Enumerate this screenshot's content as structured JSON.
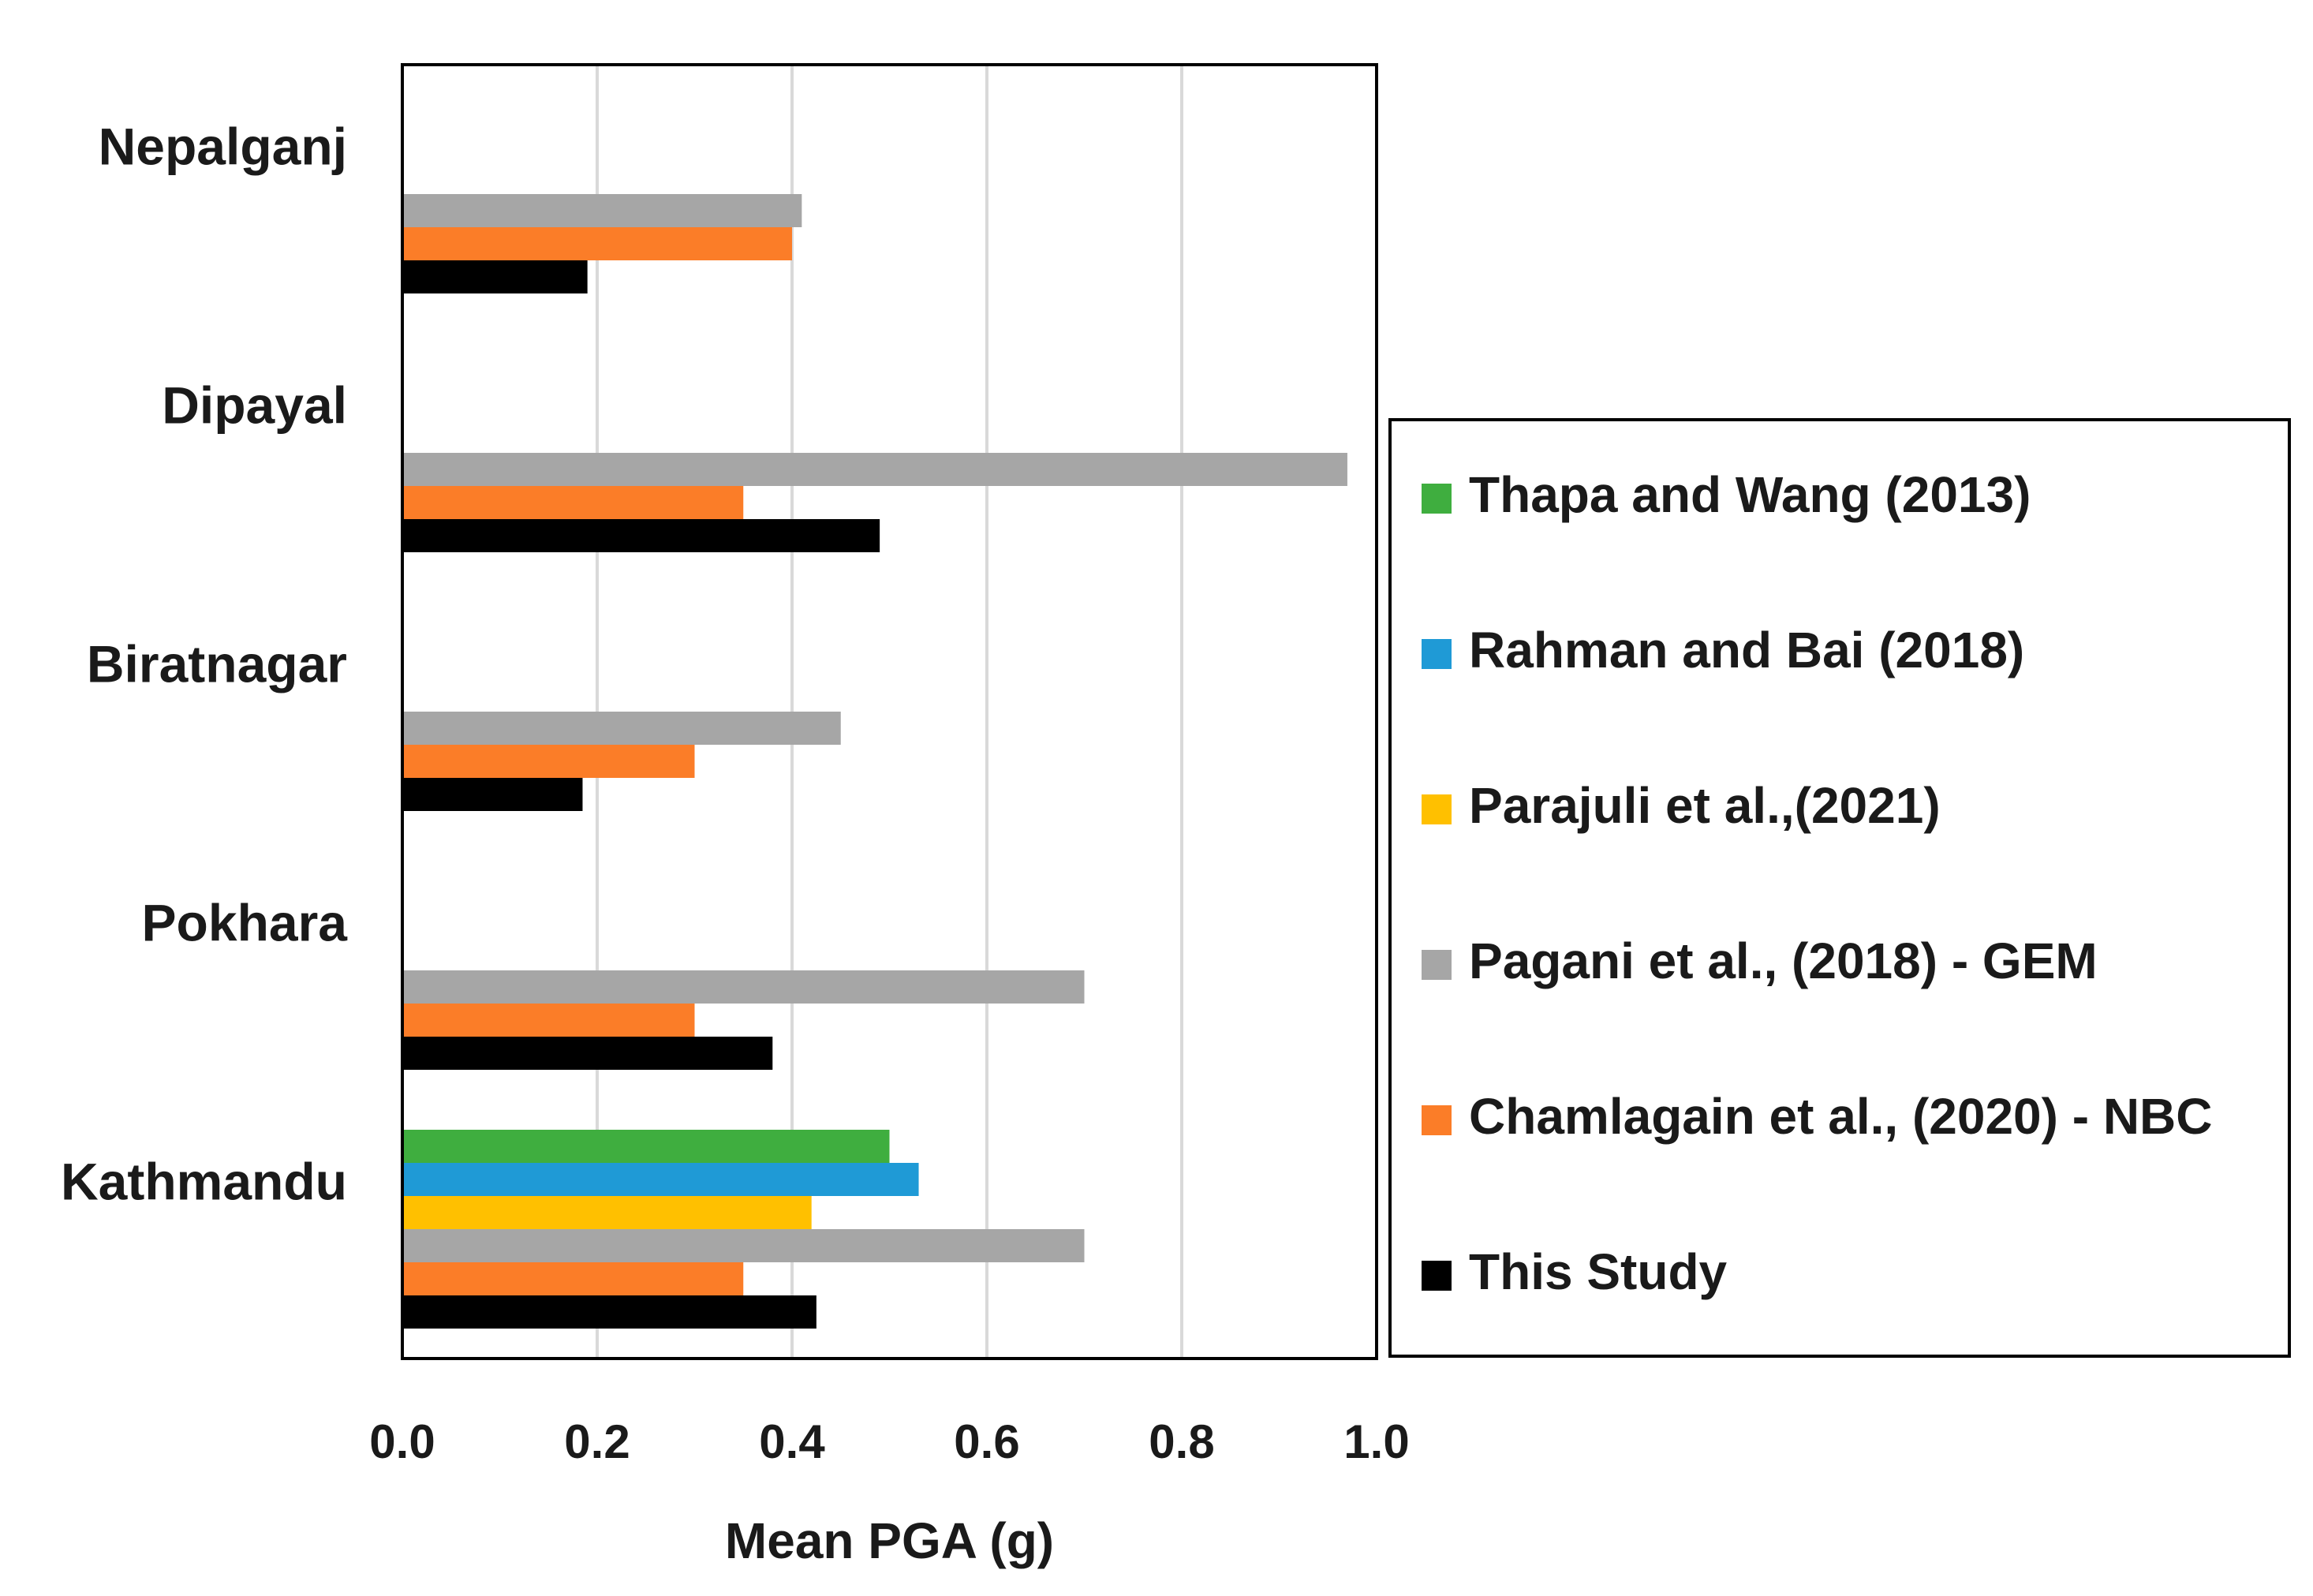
{
  "chart_data": {
    "type": "bar",
    "orientation": "horizontal",
    "title": "",
    "xlabel": "Mean PGA (g)",
    "ylabel": "",
    "xlim": [
      0,
      1.0
    ],
    "xticks": [
      "0.0",
      "0.2",
      "0.4",
      "0.6",
      "0.8",
      "1.0"
    ],
    "grid": true,
    "legend_position": "right",
    "categories": [
      "Nepalganj",
      "Dipayal",
      "Biratnagar",
      "Pokhara",
      "Kathmandu"
    ],
    "series": [
      {
        "name": "Thapa and Wang (2013)",
        "color": "#3fae3f",
        "values": [
          null,
          null,
          null,
          null,
          0.5
        ]
      },
      {
        "name": "Rahman and Bai (2018)",
        "color": "#1f9ad6",
        "values": [
          null,
          null,
          null,
          null,
          0.53
        ]
      },
      {
        "name": "Parajuli et al.,(2021)",
        "color": "#ffc000",
        "values": [
          null,
          null,
          null,
          null,
          0.42
        ]
      },
      {
        "name": "Pagani et al., (2018) - GEM",
        "color": "#a6a6a6",
        "values": [
          0.41,
          0.97,
          0.45,
          0.7,
          0.7
        ]
      },
      {
        "name": "Chamlagain et al., (2020) - NBC",
        "color": "#fb7d28",
        "values": [
          0.4,
          0.35,
          0.3,
          0.3,
          0.35
        ]
      },
      {
        "name": "This Study",
        "color": "#000000",
        "values": [
          0.19,
          0.49,
          0.185,
          0.38,
          0.425
        ]
      }
    ]
  }
}
